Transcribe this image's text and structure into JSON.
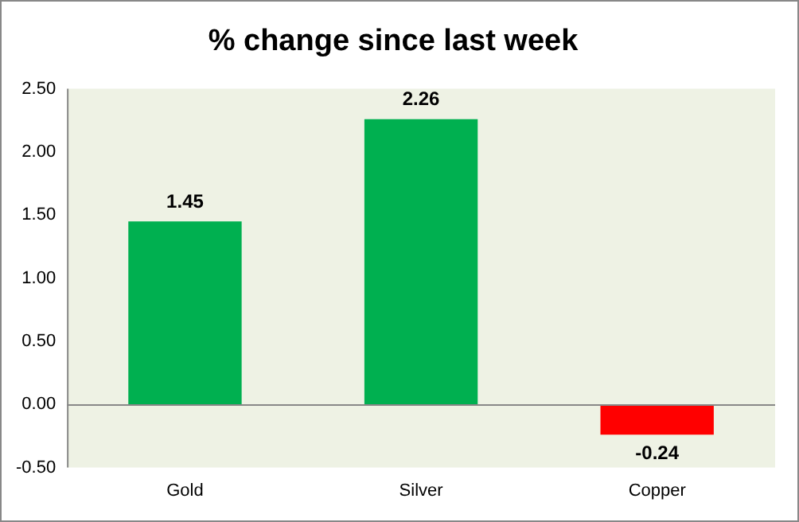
{
  "chart_data": {
    "type": "bar",
    "title": "% change since last week",
    "categories": [
      "Gold",
      "Silver",
      "Copper"
    ],
    "values": [
      1.45,
      2.26,
      -0.24
    ],
    "colors": [
      "#00b050",
      "#00b050",
      "#ff0000"
    ],
    "ylim": [
      -0.5,
      2.5
    ],
    "yticks": [
      {
        "value": -0.5,
        "label": "-0.50"
      },
      {
        "value": 0,
        "label": "0.00"
      },
      {
        "value": 0.5,
        "label": "0.50"
      },
      {
        "value": 1,
        "label": "1.00"
      },
      {
        "value": 1.5,
        "label": "1.50"
      },
      {
        "value": 2,
        "label": "2.00"
      },
      {
        "value": 2.5,
        "label": "2.50"
      }
    ],
    "data_labels": true,
    "legend": false
  }
}
